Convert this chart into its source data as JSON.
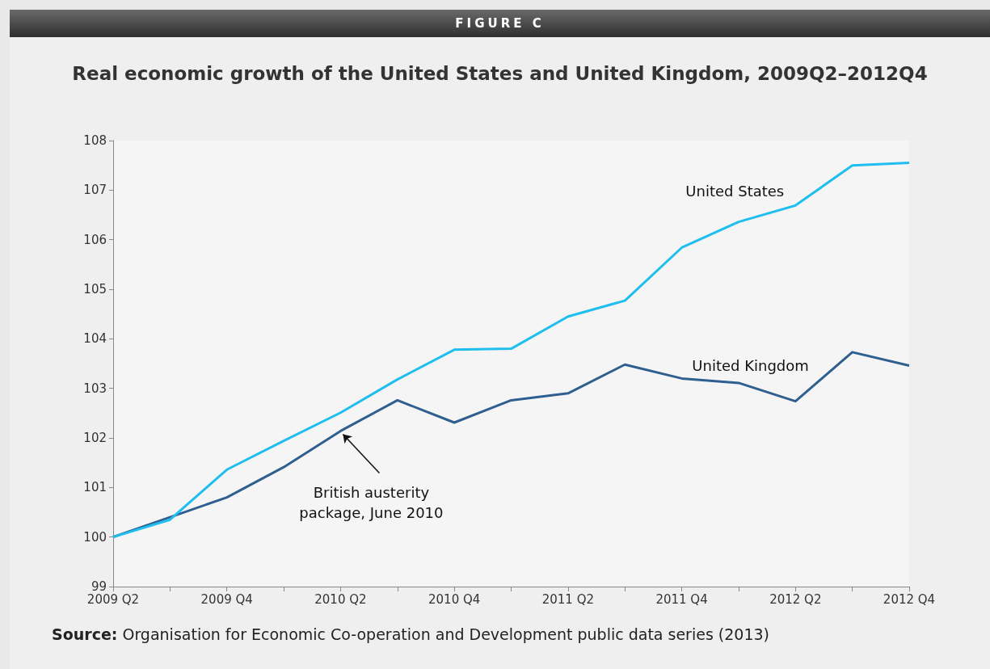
{
  "chart_data": {
    "type": "line",
    "title": "FIGURE C",
    "subtitle": "Real economic growth of the United States and United Kingdom, 2009Q2–2012Q4",
    "categories": [
      "2009 Q2",
      null,
      "2009 Q4",
      null,
      "2010 Q2",
      null,
      "2010 Q4",
      null,
      "2011 Q2",
      null,
      "2011 Q4",
      null,
      "2012 Q2",
      null,
      "2012 Q4"
    ],
    "series": [
      {
        "name": "United States",
        "color": "#1ebeee",
        "values": [
          100,
          100.35,
          101.36,
          101.94,
          102.51,
          103.18,
          103.78,
          103.8,
          104.45,
          104.77,
          105.84,
          106.36,
          106.69,
          107.5,
          107.55
        ]
      },
      {
        "name": "United Kingdom",
        "color": "#2f5f8f",
        "values": [
          100,
          100.4,
          100.8,
          101.41,
          102.14,
          102.76,
          102.31,
          102.76,
          102.9,
          103.48,
          103.2,
          103.11,
          102.74,
          103.73,
          103.46
        ]
      }
    ],
    "ylim": [
      99,
      108
    ],
    "yticks": [
      99,
      100,
      101,
      102,
      103,
      104,
      105,
      106,
      107,
      108
    ],
    "grid": false,
    "legend": false,
    "marker": "none",
    "line_style": "solid",
    "annotations": [
      {
        "text": "British austerity package, June 2010",
        "x": "2010 Q2",
        "y": 102.14
      },
      "Source: Organisation for Economic Co-operation and Development public data series (2013)"
    ]
  }
}
